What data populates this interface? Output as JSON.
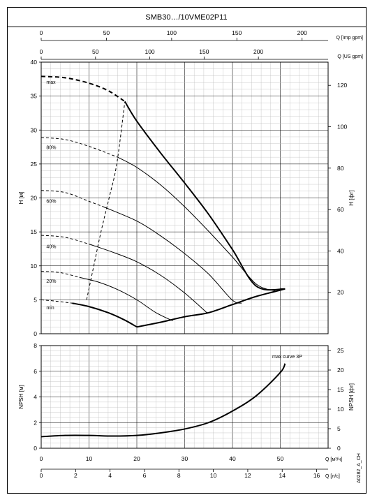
{
  "title": "SMB30…/10VME02P11",
  "doc_code": "A0282_A_CH",
  "chart_data": [
    {
      "type": "line",
      "name_id": "head-chart",
      "ylabel": "H [м]",
      "ylabel_right": "H [фт]",
      "ylim": [
        0,
        40
      ],
      "yticks": [
        0,
        5,
        10,
        15,
        20,
        25,
        30,
        35,
        40
      ],
      "ylim_right": [
        0,
        131.2
      ],
      "yticks_right": [
        20,
        40,
        60,
        80,
        100,
        120
      ],
      "xlim": [
        0,
        60
      ],
      "top_axes": [
        {
          "label": "Q [Imp gpm]",
          "ticks": [
            0,
            50,
            100,
            150,
            200
          ],
          "factor": 3.666
        },
        {
          "label": "Q [US gpm]",
          "ticks": [
            0,
            50,
            100,
            150,
            200
          ],
          "factor": 4.403
        }
      ],
      "grid": true,
      "curve_labels": [
        {
          "text": "max",
          "x": 0.5,
          "y": 36.8
        },
        {
          "text": "80%",
          "x": 0.5,
          "y": 27.2
        },
        {
          "text": "60%",
          "x": 0.5,
          "y": 19.3
        },
        {
          "text": "40%",
          "x": 0.5,
          "y": 12.6
        },
        {
          "text": "20%",
          "x": 0.5,
          "y": 7.5
        },
        {
          "text": "min",
          "x": 0.5,
          "y": 3.6
        }
      ],
      "series": [
        {
          "id": "max-dashed",
          "style": "thick-dashed",
          "points": [
            [
              0,
              37.9
            ],
            [
              5,
              37.7
            ],
            [
              10,
              36.9
            ],
            [
              14,
              35.8
            ],
            [
              17.5,
              34.2
            ]
          ]
        },
        {
          "id": "max-solid",
          "style": "thick",
          "points": [
            [
              17.5,
              34.2
            ],
            [
              20,
              31.3
            ],
            [
              25,
              26.6
            ],
            [
              30,
              22.2
            ],
            [
              35,
              17.6
            ],
            [
              40,
              12.4
            ],
            [
              45,
              7.0
            ],
            [
              51,
              6.6
            ]
          ]
        },
        {
          "id": "80-dashed",
          "style": "dashed",
          "points": [
            [
              0,
              28.9
            ],
            [
              5,
              28.6
            ],
            [
              10,
              27.6
            ],
            [
              16,
              26.0
            ]
          ]
        },
        {
          "id": "80-solid",
          "style": "thin",
          "points": [
            [
              16,
              26.0
            ],
            [
              20,
              24.5
            ],
            [
              25,
              21.9
            ],
            [
              30,
              18.7
            ],
            [
              35,
              15.1
            ],
            [
              40,
              11.3
            ],
            [
              45,
              7.3
            ],
            [
              49,
              6.3
            ]
          ]
        },
        {
          "id": "60-dashed",
          "style": "dashed",
          "points": [
            [
              0,
              21.1
            ],
            [
              5,
              20.8
            ],
            [
              10,
              19.5
            ],
            [
              13,
              18.7
            ]
          ]
        },
        {
          "id": "60-solid",
          "style": "thin",
          "points": [
            [
              13,
              18.7
            ],
            [
              20,
              16.6
            ],
            [
              25,
              14.4
            ],
            [
              30,
              11.8
            ],
            [
              35,
              8.8
            ],
            [
              39.9,
              5.0
            ],
            [
              41.9,
              4.5
            ]
          ]
        },
        {
          "id": "40-dashed",
          "style": "dashed",
          "points": [
            [
              0,
              14.5
            ],
            [
              5,
              14.2
            ],
            [
              10,
              13.2
            ]
          ]
        },
        {
          "id": "40-solid",
          "style": "thin",
          "points": [
            [
              10,
              13.2
            ],
            [
              15,
              12.0
            ],
            [
              20,
              10.6
            ],
            [
              25,
              8.6
            ],
            [
              30,
              6.0
            ],
            [
              34.8,
              3.0
            ]
          ]
        },
        {
          "id": "20-dashed",
          "style": "dashed",
          "points": [
            [
              0,
              9.2
            ],
            [
              4,
              9.0
            ],
            [
              8,
              8.3
            ]
          ]
        },
        {
          "id": "20-solid",
          "style": "thin",
          "points": [
            [
              8,
              8.3
            ],
            [
              12,
              7.6
            ],
            [
              16,
              6.5
            ],
            [
              20,
              5.0
            ],
            [
              24,
              3.1
            ],
            [
              27.5,
              1.9
            ]
          ]
        },
        {
          "id": "min-dashed",
          "style": "dashed",
          "points": [
            [
              0,
              5.0
            ],
            [
              3,
              4.8
            ],
            [
              6.5,
              4.5
            ]
          ]
        },
        {
          "id": "min-solid",
          "style": "thick",
          "points": [
            [
              6.5,
              4.5
            ],
            [
              10,
              4.0
            ],
            [
              14,
              3.1
            ],
            [
              17.5,
              2.0
            ],
            [
              20,
              1.0
            ]
          ]
        },
        {
          "id": "lower-envelope",
          "style": "thick",
          "points": [
            [
              20,
              1.0
            ],
            [
              25,
              1.7
            ],
            [
              30,
              2.5
            ],
            [
              35,
              3.1
            ],
            [
              40,
              4.3
            ],
            [
              45,
              5.5
            ],
            [
              51,
              6.6
            ]
          ]
        },
        {
          "id": "max-speed-dashed",
          "style": "dashed",
          "points": [
            [
              9.5,
              5.0
            ],
            [
              11,
              10.0
            ],
            [
              12.5,
              15.0
            ],
            [
              14.2,
              20.0
            ],
            [
              15.8,
              25.0
            ],
            [
              17.5,
              34.2
            ]
          ]
        }
      ]
    },
    {
      "type": "line",
      "name_id": "npsh-chart",
      "ylabel": "NPSH [м]",
      "ylabel_right": "NPSH [фт]",
      "ylim": [
        0,
        8
      ],
      "yticks": [
        0,
        2,
        4,
        6,
        8
      ],
      "ylim_right": [
        0,
        26.25
      ],
      "yticks_right": [
        0,
        5,
        10,
        15,
        20,
        25
      ],
      "xlim": [
        0,
        60
      ],
      "xticks": [
        0,
        10,
        20,
        30,
        40,
        50
      ],
      "xlabel": "Q [м³/ч]",
      "bottom_axis": {
        "label": "Q [л/с]",
        "ticks": [
          0,
          2,
          4,
          6,
          8,
          10,
          12,
          14,
          16
        ],
        "factor": 0.27778
      },
      "grid": true,
      "annotation": "max curve 3P",
      "series": [
        {
          "id": "npsh",
          "style": "thick",
          "points": [
            [
              0,
              0.9
            ],
            [
              5,
              1.0
            ],
            [
              10,
              1.0
            ],
            [
              15,
              0.95
            ],
            [
              20,
              1.0
            ],
            [
              25,
              1.2
            ],
            [
              30,
              1.5
            ],
            [
              35,
              2.0
            ],
            [
              40,
              2.9
            ],
            [
              45,
              4.1
            ],
            [
              50,
              5.9
            ],
            [
              51,
              6.6
            ]
          ]
        }
      ]
    }
  ]
}
